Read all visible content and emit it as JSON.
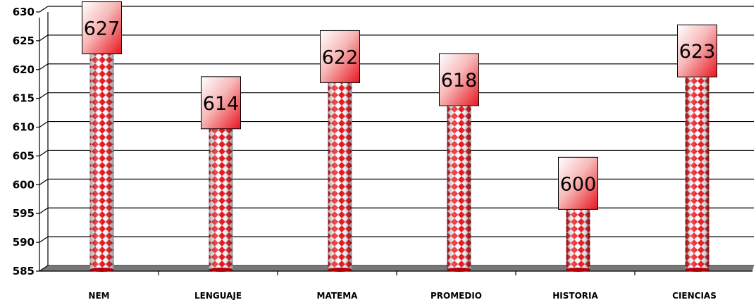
{
  "chart_data": {
    "type": "bar",
    "categories": [
      "NEM",
      "LENGUAJE",
      "MATEMA",
      "PROMEDIO",
      "HISTORIA",
      "CIENCIAS"
    ],
    "values": [
      627,
      614,
      622,
      618,
      600,
      623
    ],
    "ylim": [
      585,
      630
    ],
    "yticks": [
      585,
      590,
      595,
      600,
      605,
      610,
      615,
      620,
      625,
      630
    ],
    "grid": true,
    "bar_style": "cylinder with red diamond pattern",
    "colors": {
      "bar_red": "#e8101a",
      "bar_light": "#f2f2f2",
      "label_top": "#ffffff",
      "label_bottom": "#e8151f",
      "floor": "#777777",
      "gridline": "#000000"
    }
  }
}
